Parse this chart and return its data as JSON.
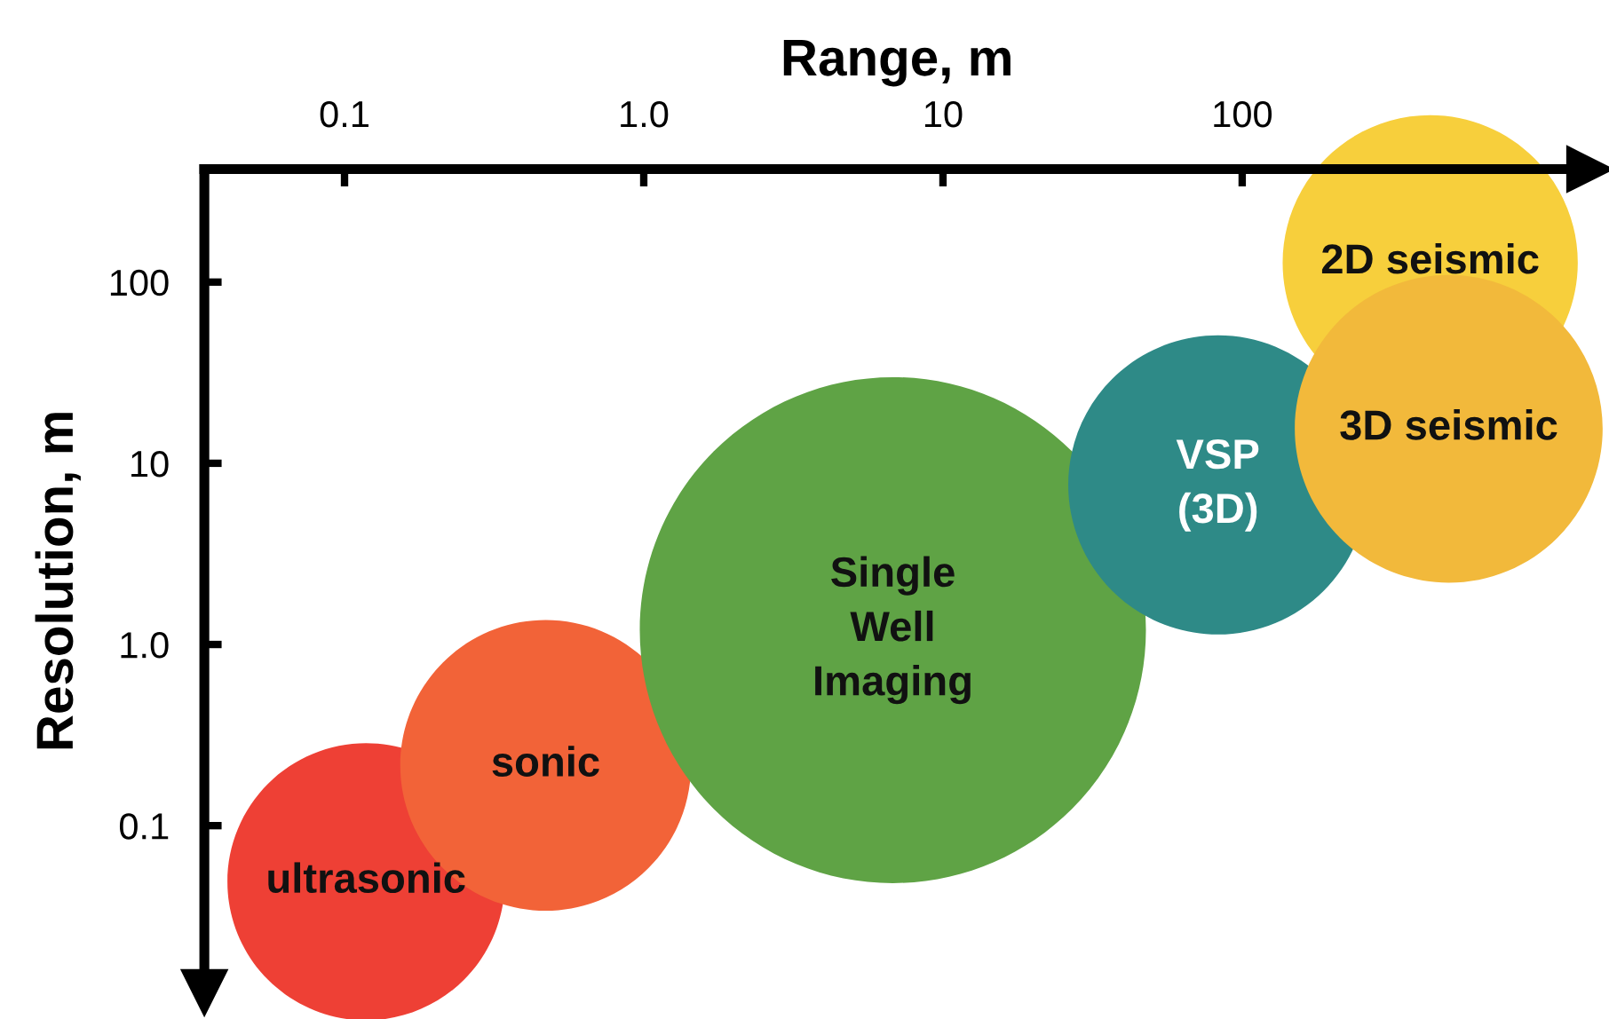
{
  "chart_data": {
    "type": "bubble",
    "xlabel": "Range, m",
    "ylabel": "Resolution, m",
    "log": "xy",
    "xlim": [
      0.034,
      1450
    ],
    "ylim": [
      0.012,
      420
    ],
    "xticks": [
      0.1,
      {
        "value": 1,
        "label": "1.0"
      },
      10,
      100
    ],
    "yticks": [
      0.1,
      {
        "value": 1,
        "label": "1.0"
      },
      10,
      100
    ],
    "marker": "circle",
    "series": [
      {
        "name": "ultrasonic",
        "color": "#ee4035",
        "x": [
          0.118
        ],
        "values": [
          0.049
        ],
        "sizes": [
          0.3
        ]
      },
      {
        "name": "sonic",
        "color": "#f26338",
        "x": [
          0.47
        ],
        "values": [
          0.215
        ],
        "sizes": [
          0.33
        ]
      },
      {
        "name": "Single\nWell\nImaging",
        "color": "#5fa345",
        "x": [
          6.8
        ],
        "values": [
          1.2
        ],
        "sizes": [
          1
        ]
      },
      {
        "name": "VSP\n(3D)",
        "color": "#2e8a87",
        "x": [
          83
        ],
        "values": [
          7.6
        ],
        "sizes": [
          0.35
        ]
      },
      {
        "name": "2D seismic",
        "color": "#f7cf3c",
        "x": [
          425
        ],
        "values": [
          128
        ],
        "sizes": [
          0.34
        ]
      },
      {
        "name": "3D seismic",
        "color": "#f2b93b",
        "x": [
          490
        ],
        "values": [
          15.5
        ],
        "sizes": [
          0.37
        ]
      }
    ]
  }
}
